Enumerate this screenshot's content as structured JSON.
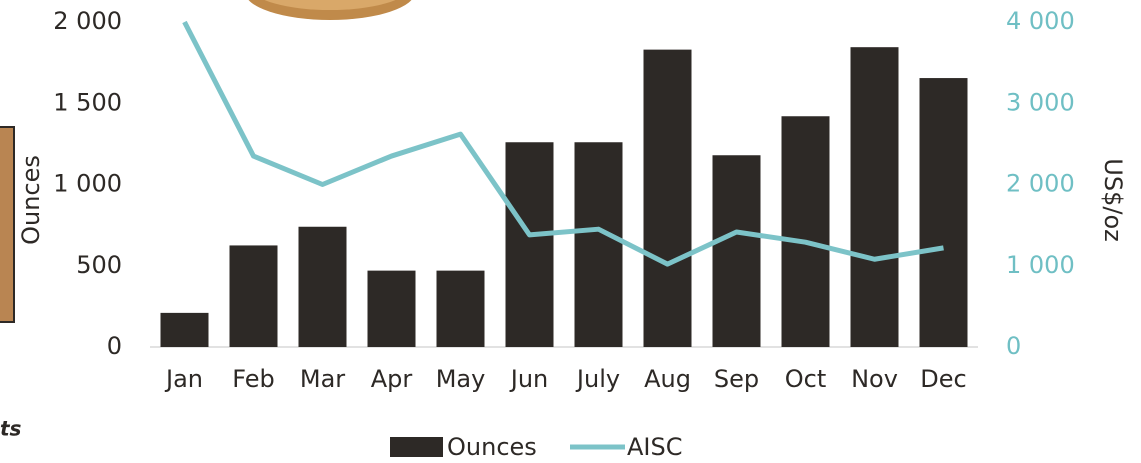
{
  "chart_data": {
    "type": "bar_line",
    "categories": [
      "Jan",
      "Feb",
      "Mar",
      "Apr",
      "May",
      "Jun",
      "July",
      "Aug",
      "Sep",
      "Oct",
      "Nov",
      "Dec"
    ],
    "series": [
      {
        "name": "Ounces",
        "color": "#2d2926",
        "type": "bar",
        "values": [
          210,
          625,
          740,
          470,
          470,
          1260,
          1260,
          1830,
          1180,
          1420,
          1845,
          1655
        ]
      },
      {
        "name": "AISC",
        "color": "#7cc3c8",
        "type": "line",
        "axis": "y2",
        "values": [
          4000,
          2350,
          2000,
          2350,
          2620,
          1380,
          1450,
          1020,
          1415,
          1290,
          1080,
          1220
        ]
      }
    ],
    "ylabel": "Ounces",
    "y2label": "US$/oz",
    "ylim": [
      0,
      2000
    ],
    "yticks": [
      0,
      500,
      {
        "value": 1000,
        "label": "1 000"
      },
      {
        "value": 1500,
        "label": "1 500"
      },
      {
        "value": 2000,
        "label": "2 000"
      }
    ],
    "y2lim": [
      0,
      4000
    ],
    "y2ticks": [
      0,
      {
        "value": 1000,
        "label": "1 000"
      },
      {
        "value": 2000,
        "label": "2 000"
      },
      {
        "value": 3000,
        "label": "3 000"
      },
      {
        "value": 4000,
        "label": "4 000"
      }
    ],
    "y2tick_color": "#6fbfc4",
    "annotation": "ts"
  }
}
